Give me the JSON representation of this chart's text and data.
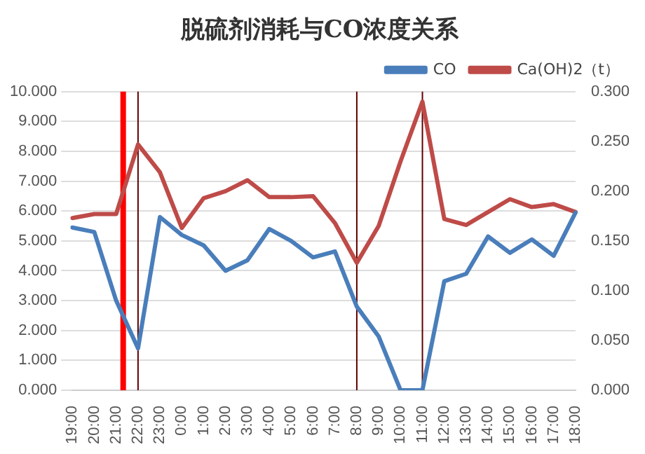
{
  "chart_data": {
    "type": "line",
    "title": "脱硫剂消耗与CO浓度关系",
    "categories": [
      "19:00",
      "20:00",
      "21:00",
      "22:00",
      "23:00",
      "0:00",
      "1:00",
      "2:00",
      "3:00",
      "4:00",
      "5:00",
      "6:00",
      "7:00",
      "8:00",
      "9:00",
      "10:00",
      "11:00",
      "12:00",
      "13:00",
      "14:00",
      "15:00",
      "16:00",
      "17:00",
      "18:00"
    ],
    "series": [
      {
        "name": "CO",
        "color": "#4a7ebb",
        "values": [
          5.45,
          5.3,
          3.0,
          1.4,
          5.8,
          5.2,
          4.85,
          4.0,
          4.35,
          5.4,
          5.0,
          4.45,
          4.65,
          2.8,
          1.8,
          0.0,
          0.0,
          3.65,
          3.9,
          5.15,
          4.6,
          5.05,
          4.5,
          5.95
        ]
      },
      {
        "name": "Ca(OH)2（t）",
        "color": "#be4b48",
        "axis": "y2",
        "values": [
          0.173,
          0.177,
          0.177,
          0.247,
          0.219,
          0.163,
          0.193,
          0.2,
          0.211,
          0.194,
          0.194,
          0.195,
          0.168,
          0.128,
          0.165,
          0.23,
          0.29,
          0.172,
          0.166,
          0.179,
          0.192,
          0.184,
          0.187,
          0.179
        ]
      }
    ],
    "ylim": [
      0,
      10
    ],
    "yticks": [
      {
        "value": 0,
        "label": "0.000"
      },
      {
        "value": 1,
        "label": "1.000"
      },
      {
        "value": 2,
        "label": "2.000"
      },
      {
        "value": 3,
        "label": "3.000"
      },
      {
        "value": 4,
        "label": "4.000"
      },
      {
        "value": 5,
        "label": "5.000"
      },
      {
        "value": 6,
        "label": "6.000"
      },
      {
        "value": 7,
        "label": "7.000"
      },
      {
        "value": 8,
        "label": "8.000"
      },
      {
        "value": 9,
        "label": "9.000"
      },
      {
        "value": 10,
        "label": "10.000"
      }
    ],
    "y2lim": [
      0,
      0.3
    ],
    "y2ticks": [
      {
        "value": 0,
        "label": "0.000"
      },
      {
        "value": 0.05,
        "label": "0.050"
      },
      {
        "value": 0.1,
        "label": "0.100"
      },
      {
        "value": 0.15,
        "label": "0.150"
      },
      {
        "value": 0.2,
        "label": "0.200"
      },
      {
        "value": 0.25,
        "label": "0.250"
      },
      {
        "value": 0.3,
        "label": "0.300"
      }
    ],
    "ref_lines": [
      {
        "axis": "x",
        "value": "21:00",
        "color": "#ff0000"
      },
      {
        "axis": "x",
        "value": "22:00",
        "color": "#600000"
      },
      {
        "axis": "x",
        "value": "8:00",
        "color": "#600000"
      },
      {
        "axis": "x",
        "value": "11:00",
        "color": "#600000"
      }
    ],
    "grid": "y",
    "legend": "top right",
    "marker": "none",
    "line_style": "solid"
  }
}
